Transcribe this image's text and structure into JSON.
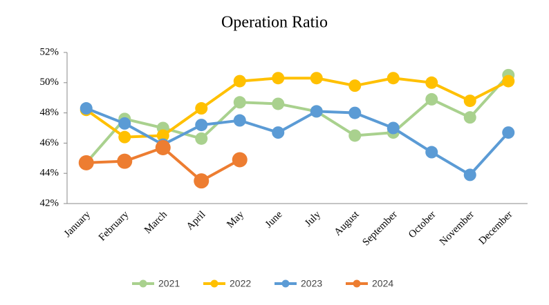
{
  "chart_data": {
    "type": "line",
    "title": "Operation Ratio",
    "categories": [
      "January",
      "February",
      "March",
      "April",
      "May",
      "June",
      "July",
      "August",
      "September",
      "October",
      "November",
      "December"
    ],
    "series": [
      {
        "name": "2021",
        "color": "#a9d18e",
        "values": [
          44.7,
          47.6,
          47.0,
          46.3,
          48.7,
          48.6,
          48.1,
          46.5,
          46.7,
          48.9,
          47.7,
          50.5
        ]
      },
      {
        "name": "2022",
        "color": "#ffc000",
        "values": [
          48.2,
          46.4,
          46.5,
          48.3,
          50.1,
          50.3,
          50.3,
          49.8,
          50.3,
          50.0,
          48.8,
          50.1
        ]
      },
      {
        "name": "2023",
        "color": "#5b9bd5",
        "values": [
          48.3,
          47.3,
          45.9,
          47.2,
          47.5,
          46.7,
          48.1,
          48.0,
          47.0,
          45.4,
          43.9,
          46.7
        ]
      },
      {
        "name": "2024",
        "color": "#ed7d31",
        "values": [
          44.7,
          44.8,
          45.7,
          43.5,
          44.9,
          null,
          null,
          null,
          null,
          null,
          null,
          null
        ]
      }
    ],
    "ylim": [
      42,
      52
    ],
    "yticks": [
      {
        "value": 42,
        "label": "42%"
      },
      {
        "value": 44,
        "label": "44%"
      },
      {
        "value": 46,
        "label": "46%"
      },
      {
        "value": 48,
        "label": "48%"
      },
      {
        "value": 50,
        "label": "50%"
      },
      {
        "value": 52,
        "label": "52%"
      }
    ],
    "grid": false,
    "legend": "bottom"
  }
}
